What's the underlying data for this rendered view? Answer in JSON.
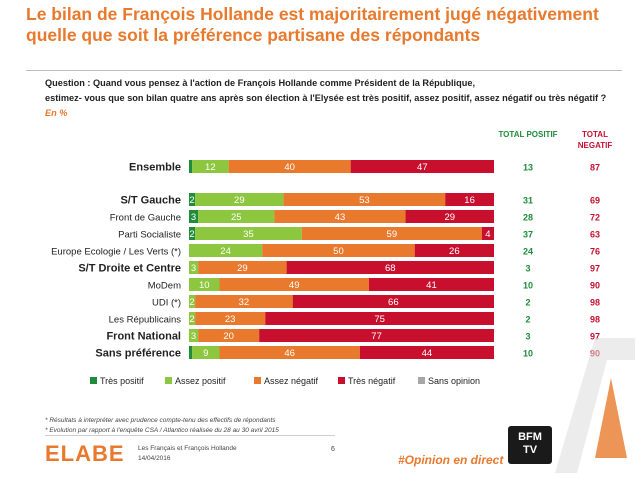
{
  "title": "Le bilan de François Hollande est majoritairement jugé négativement quelle que soit la préférence partisane des répondants",
  "question_line1": "Question : Quand vous pensez à l'action de François Hollande comme Président de la République,",
  "question_line2": "estimez- vous que son bilan quatre ans après son élection à l'Elysée est très positif, assez positif, assez négatif ou très négatif ?",
  "unit": "En %",
  "headers": {
    "total_positif": "TOTAL POSITIF",
    "total_negatif": "TOTAL NEGATIF"
  },
  "colors": {
    "tres_positif": "#1E8C3A",
    "assez_positif": "#8DC63F",
    "assez_negatif": "#E8792D",
    "tres_negatif": "#C8102E",
    "sans_opinion": "#A6A6A6",
    "accent": "#E8792D",
    "total_positif_text": "#1E8C3A",
    "total_negatif_text": "#C8102E"
  },
  "chart_data": {
    "type": "bar",
    "orientation": "horizontal",
    "stacked": true,
    "xlim": [
      0,
      100
    ],
    "categories": [
      "Ensemble",
      "S/T Gauche",
      "Front de Gauche",
      "Parti Socialiste",
      "Europe Ecologie / Les Verts (*)",
      "S/T Droite et Centre",
      "MoDem",
      "UDI (*)",
      "Les Républicains",
      "Front National",
      "Sans préférence"
    ],
    "bold_categories": [
      "Ensemble",
      "S/T Gauche",
      "S/T Droite et Centre",
      "Front National",
      "Sans préférence"
    ],
    "series": [
      {
        "name": "Très positif",
        "values": [
          1,
          2,
          3,
          2,
          0,
          0,
          0,
          0,
          0,
          0,
          1
        ]
      },
      {
        "name": "Assez positif",
        "values": [
          12,
          29,
          25,
          35,
          24,
          3,
          10,
          2,
          2,
          3,
          9
        ]
      },
      {
        "name": "Assez négatif",
        "values": [
          40,
          53,
          43,
          59,
          50,
          29,
          49,
          32,
          23,
          20,
          46
        ]
      },
      {
        "name": "Très négatif",
        "values": [
          47,
          16,
          29,
          4,
          26,
          68,
          41,
          66,
          75,
          77,
          44
        ]
      },
      {
        "name": "Sans opinion",
        "values": [
          0,
          0,
          0,
          0,
          0,
          0,
          0,
          0,
          0,
          0,
          0
        ]
      }
    ],
    "bar_labels": [
      [
        "",
        "12",
        "40",
        "47"
      ],
      [
        "2",
        "29",
        "53",
        "16"
      ],
      [
        "3",
        "25",
        "43",
        "29"
      ],
      [
        "2",
        "35",
        "59",
        "4"
      ],
      [
        "",
        "24",
        "50",
        "26"
      ],
      [
        "",
        "3",
        "29",
        "68"
      ],
      [
        "",
        "10",
        "49",
        "41"
      ],
      [
        "",
        "2",
        "32",
        "66"
      ],
      [
        "",
        "2",
        "23",
        "75"
      ],
      [
        "",
        "3",
        "20",
        "77"
      ],
      [
        "",
        "9",
        "46",
        "44"
      ]
    ],
    "total_positif": [
      "13",
      "31",
      "28",
      "37",
      "24",
      "3",
      "10",
      "2",
      "2",
      "3",
      "10"
    ],
    "total_negatif": [
      "87",
      "69",
      "72",
      "63",
      "76",
      "97",
      "90",
      "98",
      "98",
      "97",
      "90"
    ],
    "legend": [
      "Très positif",
      "Assez positif",
      "Assez négatif",
      "Très négatif",
      "Sans opinion"
    ],
    "legend_position": "bottom"
  },
  "footnotes": [
    "* Résultats à interpréter avec prudence compte-tenu des effectifs de répondants",
    "* Evolution par rapport à l'enquête CSA / Atlantico réalisée du 28 au 30 avril 2015"
  ],
  "footer": {
    "logo": "ELABE",
    "subtitle": "Les Français et François Hollande",
    "date": "14/04/2016",
    "page": "6",
    "hashtag": "#Opinion en direct",
    "partner_logo": [
      "BFM",
      "TV"
    ]
  }
}
